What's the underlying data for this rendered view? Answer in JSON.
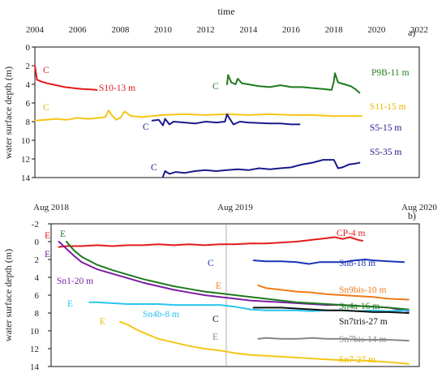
{
  "chart_data": [
    {
      "panel_tag": "a)",
      "type": "line",
      "xlabel": "time",
      "ylabel": "water surface depth (m)",
      "xlim": [
        2004,
        2022
      ],
      "ylim": [
        14,
        0
      ],
      "inverted_y": true,
      "x_ticks": [
        "2004",
        "2006",
        "2008",
        "2010",
        "2012",
        "2014",
        "2016",
        "2018",
        "2020",
        "2022"
      ],
      "y_ticks": [
        "0",
        "2",
        "4",
        "6",
        "8",
        "10",
        "12",
        "14"
      ],
      "grid": false,
      "colors": {
        "red": "#e41a1c",
        "green": "#1f7a1f",
        "yellow": "#f5c518",
        "navy": "#1a1a8c"
      },
      "series": [
        {
          "name": "S10-13 m",
          "init": "C",
          "color": "#e41a1c",
          "x": [
            2004.0,
            2004.1,
            2004.3,
            2004.6,
            2005.0,
            2005.4,
            2005.8,
            2006.2,
            2006.6,
            2006.9
          ],
          "y": [
            2.0,
            3.5,
            3.7,
            3.9,
            4.1,
            4.3,
            4.4,
            4.5,
            4.55,
            4.6
          ]
        },
        {
          "name": "P9B-11 m",
          "init": "C",
          "color": "#1f7a1f",
          "x": [
            2013.0,
            2013.05,
            2013.2,
            2013.4,
            2013.5,
            2013.7,
            2014.0,
            2014.5,
            2015.0,
            2015.5,
            2016.0,
            2016.5,
            2017.0,
            2017.5,
            2017.9,
            2018.0,
            2018.05,
            2018.2,
            2018.5,
            2018.8,
            2019.0,
            2019.2
          ],
          "y": [
            4.0,
            3.0,
            3.8,
            4.0,
            3.4,
            3.9,
            4.0,
            4.2,
            4.3,
            4.1,
            4.3,
            4.3,
            4.4,
            4.5,
            4.6,
            3.7,
            2.8,
            3.8,
            4.0,
            4.2,
            4.5,
            4.9
          ]
        },
        {
          "name": "S11-15 m",
          "init": "C",
          "color": "#f5c518",
          "x": [
            2004.0,
            2004.5,
            2005.0,
            2005.5,
            2006.0,
            2006.5,
            2007.0,
            2007.3,
            2007.45,
            2007.6,
            2007.8,
            2008.0,
            2008.2,
            2008.5,
            2009.0,
            2009.5,
            2010.0,
            2011.0,
            2012.0,
            2013.0,
            2014.0,
            2015.0,
            2016.0,
            2017.0,
            2018.0,
            2019.0,
            2019.3
          ],
          "y": [
            7.9,
            7.8,
            7.7,
            7.8,
            7.6,
            7.7,
            7.6,
            7.5,
            6.8,
            7.3,
            7.8,
            7.6,
            6.9,
            7.4,
            7.5,
            7.4,
            7.3,
            7.2,
            7.3,
            7.2,
            7.3,
            7.2,
            7.3,
            7.3,
            7.4,
            7.4,
            7.4
          ]
        },
        {
          "name": "S5-15 m",
          "init": "C",
          "color": "#1a1a8c",
          "x": [
            2009.5,
            2009.8,
            2010.0,
            2010.1,
            2010.3,
            2010.5,
            2011.0,
            2011.5,
            2012.0,
            2012.5,
            2012.9,
            2013.0,
            2013.1,
            2013.3,
            2013.6,
            2014.0,
            2015.0,
            2015.5,
            2016.0,
            2016.4
          ],
          "y": [
            7.9,
            7.8,
            8.4,
            7.7,
            8.3,
            8.0,
            8.1,
            8.2,
            8.0,
            8.1,
            8.0,
            7.2,
            7.6,
            8.3,
            8.0,
            8.1,
            8.2,
            8.2,
            8.3,
            8.3
          ]
        },
        {
          "name": "S5-35 m",
          "init": "C",
          "color": "#1a1a8c",
          "x": [
            2010.0,
            2010.1,
            2010.3,
            2010.6,
            2011.0,
            2011.5,
            2012.0,
            2012.5,
            2013.0,
            2013.5,
            2014.0,
            2014.5,
            2015.0,
            2015.5,
            2016.0,
            2016.5,
            2017.0,
            2017.5,
            2018.0,
            2018.2,
            2018.4,
            2018.7,
            2019.0,
            2019.2
          ],
          "y": [
            13.9,
            13.3,
            13.6,
            13.4,
            13.5,
            13.3,
            13.2,
            13.3,
            13.2,
            13.1,
            13.2,
            13.0,
            13.1,
            13.0,
            12.9,
            12.6,
            12.4,
            12.1,
            12.1,
            13.0,
            12.9,
            12.6,
            12.5,
            12.4
          ]
        }
      ]
    },
    {
      "panel_tag": "b)",
      "type": "line",
      "xlabel": "",
      "ylabel": "water surface depth (m)",
      "xlim": [
        0,
        24
      ],
      "ylim": [
        14,
        -2
      ],
      "inverted_y": true,
      "x_tick_positions": [
        0,
        12,
        24
      ],
      "x_ticks": [
        "Aug 2018",
        "Aug 2019",
        "Aug 2020"
      ],
      "y_ticks": [
        "-2",
        "0",
        "2",
        "4",
        "6",
        "8",
        "10",
        "12",
        "14"
      ],
      "grid": false,
      "series": [
        {
          "name": "CP-4 m",
          "init": "E",
          "color": "#e41a1c",
          "x": [
            0.5,
            1.0,
            2.0,
            3.0,
            4.0,
            5.0,
            6.0,
            7.0,
            8.0,
            9.0,
            10.0,
            11.0,
            12.0,
            13.0,
            14.0,
            15.0,
            16.0,
            17.0,
            17.5,
            18.0,
            18.5,
            19.0,
            19.5,
            20.0,
            20.3
          ],
          "y": [
            0.6,
            0.5,
            0.5,
            0.4,
            0.5,
            0.4,
            0.4,
            0.3,
            0.4,
            0.3,
            0.4,
            0.3,
            0.3,
            0.2,
            0.2,
            0.1,
            0.0,
            -0.2,
            -0.3,
            -0.4,
            -0.5,
            -0.3,
            -0.5,
            -0.2,
            -0.1
          ]
        },
        {
          "name": "Sn1-20 m",
          "init": "E",
          "color": "#7b1fa2",
          "x": [
            0.5,
            1.0,
            1.5,
            2.0,
            3.0,
            4.0,
            5.0,
            6.0,
            7.0,
            8.0,
            9.0,
            10.0,
            11.0,
            12.0,
            13.0,
            14.0,
            15.0,
            16.0,
            17.0,
            18.0,
            19.0,
            20.0,
            21.0,
            22.0,
            23.3
          ],
          "y": [
            0.0,
            0.8,
            1.6,
            2.3,
            3.1,
            3.6,
            4.1,
            4.6,
            5.0,
            5.4,
            5.7,
            6.0,
            6.2,
            6.4,
            6.6,
            6.7,
            6.8,
            6.9,
            7.0,
            7.1,
            7.1,
            7.2,
            7.3,
            7.4,
            7.8
          ]
        },
        {
          "name": "Sn4a-16 m",
          "init": "E",
          "color": "#1f7a1f",
          "x": [
            1.0,
            1.5,
            2.0,
            3.0,
            4.0,
            5.0,
            6.0,
            7.0,
            8.0,
            9.0,
            10.0,
            11.0,
            12.0,
            13.0,
            14.0,
            15.0,
            16.0,
            17.0,
            18.0,
            19.0,
            20.0,
            21.0,
            22.0,
            23.3
          ],
          "y": [
            0.0,
            1.0,
            1.7,
            2.6,
            3.2,
            3.7,
            4.2,
            4.6,
            5.0,
            5.3,
            5.6,
            5.8,
            6.0,
            6.2,
            6.4,
            6.6,
            6.8,
            6.9,
            7.0,
            7.1,
            7.2,
            7.3,
            7.4,
            7.6
          ]
        },
        {
          "name": "Sn8-18 m",
          "init": "C",
          "color": "#1a33b5",
          "x": [
            13.2,
            14.0,
            15.0,
            16.0,
            16.8,
            17.5,
            18.0,
            19.0,
            19.8,
            20.5,
            21.0,
            22.0,
            23.0
          ],
          "y": [
            2.1,
            2.2,
            2.2,
            2.3,
            2.5,
            2.3,
            2.3,
            2.3,
            2.1,
            2.0,
            2.1,
            2.2,
            2.3
          ]
        },
        {
          "name": "Sn9bis-10 m",
          "init": "E",
          "color": "#f07a1a",
          "x": [
            13.5,
            14.0,
            15.0,
            16.0,
            17.0,
            18.0,
            19.0,
            20.0,
            21.0,
            22.0,
            23.3
          ],
          "y": [
            4.9,
            5.2,
            5.4,
            5.6,
            5.7,
            5.9,
            6.0,
            6.1,
            6.2,
            6.4,
            6.5
          ]
        },
        {
          "name": "Sn4b-8 m",
          "init": "E",
          "color": "#29c4f0",
          "x": [
            2.5,
            3.0,
            4.0,
            5.0,
            6.0,
            7.0,
            8.0,
            9.0,
            10.0,
            11.0,
            12.0,
            13.0,
            14.0,
            15.0,
            16.0,
            17.0,
            18.0,
            19.0,
            20.0,
            21.0,
            22.0,
            23.3
          ],
          "y": [
            6.8,
            6.8,
            6.9,
            7.0,
            7.0,
            7.0,
            7.1,
            7.1,
            7.1,
            7.1,
            7.3,
            7.6,
            7.7,
            7.7,
            7.7,
            7.8,
            7.7,
            7.7,
            7.8,
            7.7,
            7.8,
            7.7
          ]
        },
        {
          "name": "Sn7tris-27 m",
          "init": "C",
          "color": "#111111",
          "x": [
            13.2,
            14.0,
            15.0,
            16.0,
            17.0,
            18.0,
            19.0,
            20.0,
            21.0,
            22.0,
            23.3
          ],
          "y": [
            7.4,
            7.4,
            7.4,
            7.5,
            7.6,
            7.7,
            7.7,
            7.8,
            7.9,
            7.9,
            8.0
          ]
        },
        {
          "name": "Sn7bis-14 m",
          "init": "E",
          "color": "#888888",
          "x": [
            13.5,
            14.0,
            15.0,
            16.0,
            17.0,
            18.0,
            19.0,
            20.0,
            21.0,
            22.0,
            23.3
          ],
          "y": [
            10.9,
            10.8,
            10.9,
            10.9,
            10.8,
            10.9,
            10.9,
            11.0,
            11.0,
            11.0,
            11.1
          ]
        },
        {
          "name": "Sn7-27 m",
          "init": "E",
          "color": "#f5c518",
          "x": [
            4.5,
            5.0,
            5.5,
            6.0,
            7.0,
            8.0,
            9.0,
            10.0,
            11.0,
            12.0,
            13.0,
            14.0,
            15.0,
            16.0,
            17.0,
            18.0,
            19.0,
            20.0,
            21.0,
            22.0,
            23.3
          ],
          "y": [
            9.0,
            9.3,
            9.8,
            10.2,
            10.9,
            11.3,
            11.7,
            12.0,
            12.2,
            12.5,
            12.7,
            12.8,
            12.9,
            13.0,
            13.1,
            13.2,
            13.3,
            13.3,
            13.4,
            13.5,
            13.7
          ]
        }
      ]
    }
  ]
}
